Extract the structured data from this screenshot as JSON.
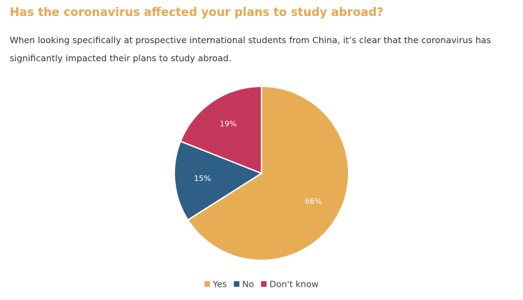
{
  "chart_data": {
    "type": "pie",
    "title": "Has the coronavirus affected your plans to study abroad?",
    "subtitle": "When looking specifically at prospective international students from China, it’s clear that the coronavirus has significantly impacted their plans to study abroad.",
    "categories": [
      "Yes",
      "No",
      "Don't know"
    ],
    "values": [
      66,
      15,
      19
    ],
    "value_labels": [
      "66%",
      "15%",
      "19%"
    ],
    "colors": [
      "#e6ad55",
      "#2d5f87",
      "#c4365a"
    ],
    "legend": "bottom"
  }
}
